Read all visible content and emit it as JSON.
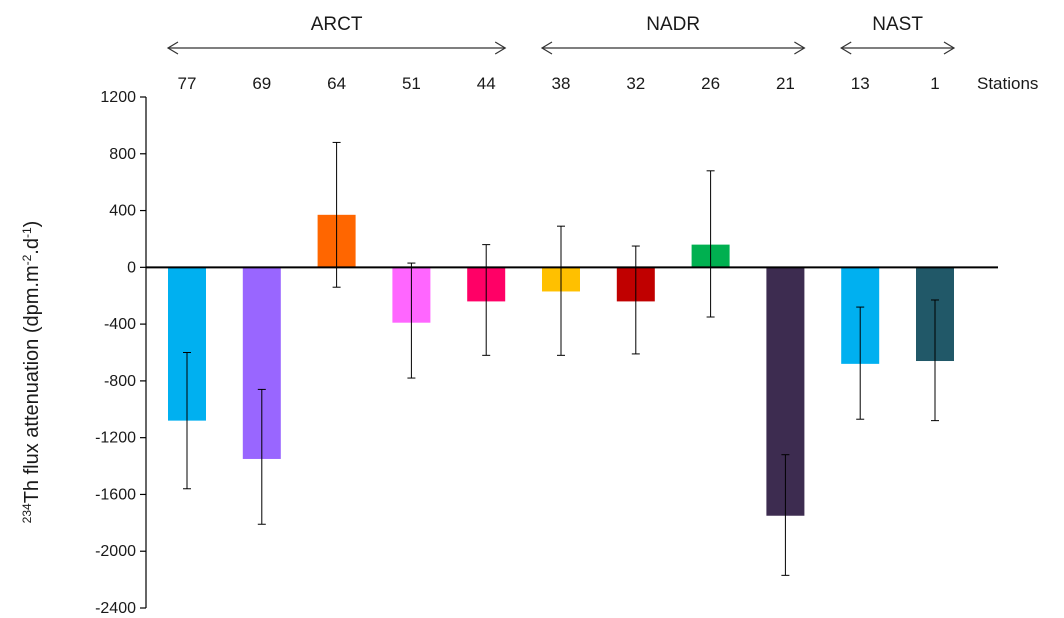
{
  "chart_data": {
    "type": "bar",
    "ylabel": {
      "isotope": "234",
      "base": "Th flux attenuation (dpm.m",
      "sup1": "-2",
      "mid": ".d",
      "sup2": "-1",
      "end": ")"
    },
    "categories_label": "Stations",
    "categories": [
      "77",
      "69",
      "64",
      "51",
      "44",
      "38",
      "32",
      "26",
      "21",
      "13",
      "1"
    ],
    "values": [
      -1080,
      -1350,
      370,
      -390,
      -240,
      -170,
      -240,
      160,
      -1750,
      -680,
      -660
    ],
    "error_bars": [
      [
        -1560,
        -600
      ],
      [
        -1810,
        -860
      ],
      [
        -140,
        880
      ],
      [
        -780,
        30
      ],
      [
        -620,
        160
      ],
      [
        -620,
        290
      ],
      [
        -610,
        150
      ],
      [
        -350,
        680
      ],
      [
        -2170,
        -1320
      ],
      [
        -1070,
        -280
      ],
      [
        -1080,
        -230
      ]
    ],
    "colors": [
      "#00B0F0",
      "#9966FF",
      "#FF6600",
      "#FF66FF",
      "#FF0066",
      "#FFC000",
      "#C00000",
      "#00B050",
      "#3D2C50",
      "#00B0F0",
      "#215868"
    ],
    "ylim": [
      -2400,
      1200
    ],
    "yticks": [
      1200,
      800,
      400,
      0,
      -400,
      -800,
      -1200,
      -1600,
      -2000,
      -2400
    ],
    "regions": [
      {
        "label": "ARCT",
        "from": 0,
        "to": 4
      },
      {
        "label": "NADR",
        "from": 5,
        "to": 8
      },
      {
        "label": "NAST",
        "from": 9,
        "to": 10
      }
    ],
    "grid": false
  }
}
